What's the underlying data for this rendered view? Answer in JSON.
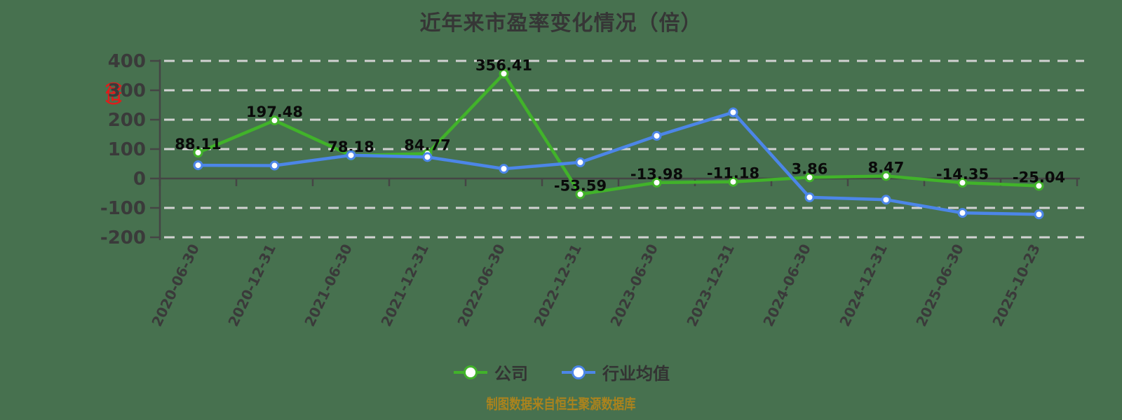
{
  "title": "近年来市盈率变化情况（倍）",
  "y_axis_unit_red": "（倍）",
  "footer": "制图数据来自恒生聚源数据库",
  "legend": [
    {
      "label": "公司",
      "color": "#41b32a"
    },
    {
      "label": "行业均值",
      "color": "#4c86e8"
    }
  ],
  "colors": {
    "background": "#47714f",
    "grid": "#d2d2d2",
    "axis": "#454545",
    "tick_label": "#3a3a3a",
    "data_label": "#0a0a0a",
    "title": "#363636",
    "legend_text": "#333333",
    "footer": "#ab831d",
    "unit_red": "#e11b1b",
    "marker_fill": "#ffffff"
  },
  "chart_data": {
    "type": "line",
    "title": "近年来市盈率变化情况（倍）",
    "categories": [
      "2020-06-30",
      "2020-12-31",
      "2021-06-30",
      "2021-12-31",
      "2022-06-30",
      "2022-12-31",
      "2023-06-30",
      "2023-12-31",
      "2024-06-30",
      "2024-12-31",
      "2025-06-30",
      "2025-10-23"
    ],
    "series": [
      {
        "name": "公司",
        "color": "#41b32a",
        "values": [
          88.11,
          197.48,
          78.18,
          84.77,
          356.41,
          -53.59,
          -13.98,
          -11.18,
          3.86,
          8.47,
          -14.35,
          -25.04
        ],
        "data_labels": [
          "88.11",
          "197.48",
          "78.18",
          "84.77",
          "356.41",
          "-53.59",
          "-13.98",
          "-11.18",
          "3.86",
          "8.47",
          "-14.35",
          "-25.04"
        ]
      },
      {
        "name": "行业均值",
        "color": "#4c86e8",
        "values": [
          45,
          44,
          79,
          73,
          33,
          55,
          145,
          225,
          -64,
          -72,
          -117,
          -122
        ],
        "estimated": true,
        "data_labels": null
      }
    ],
    "ylim": [
      -200,
      400
    ],
    "yticks": [
      400,
      300,
      200,
      100,
      0,
      -100,
      -200
    ],
    "grid": "horizontal-dashed",
    "legend_position": "bottom",
    "x_label_rotation_deg": -64
  }
}
